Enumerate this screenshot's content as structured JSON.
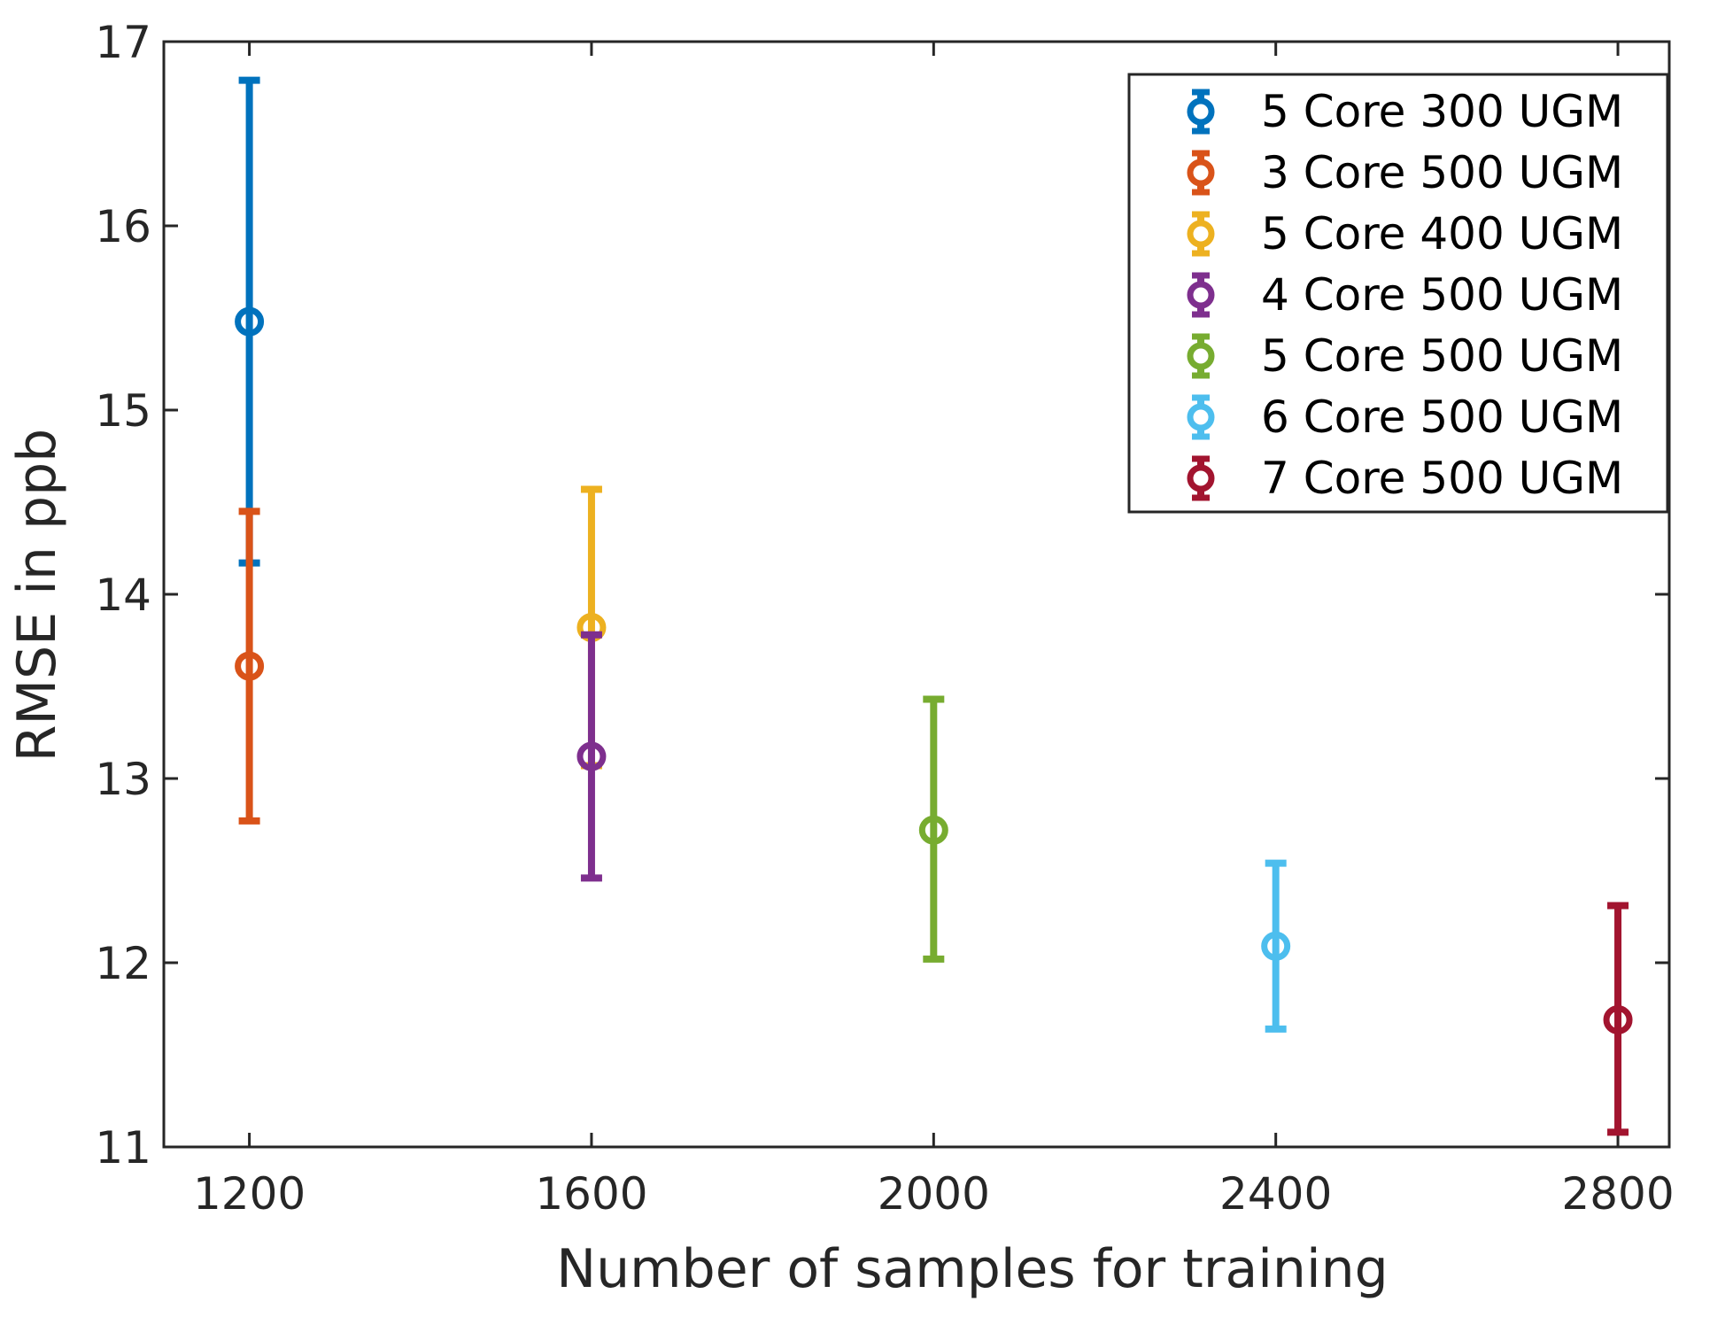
{
  "chart_data": {
    "type": "errorbar",
    "title": "",
    "xlabel": "Number of samples for training",
    "ylabel": "RMSE in ppb",
    "xlim": [
      1100,
      2860
    ],
    "ylim": [
      11,
      17
    ],
    "xticks": [
      1200,
      1600,
      2000,
      2400,
      2800
    ],
    "yticks": [
      11,
      12,
      13,
      14,
      15,
      16,
      17
    ],
    "grid": false,
    "legend_position": "top-right",
    "series": [
      {
        "name": "5 Core 300 UGM",
        "color": "#0072BD",
        "x": 1200,
        "y": 15.48,
        "low": 14.17,
        "high": 16.79
      },
      {
        "name": "3 Core 500 UGM",
        "color": "#D95319",
        "x": 1200,
        "y": 13.61,
        "low": 12.77,
        "high": 14.45
      },
      {
        "name": "5 Core 400 UGM",
        "color": "#EDB120",
        "x": 1600,
        "y": 13.82,
        "low": 13.07,
        "high": 14.57
      },
      {
        "name": "4 Core 500 UGM",
        "color": "#7E2F8E",
        "x": 1600,
        "y": 13.12,
        "low": 12.46,
        "high": 13.78
      },
      {
        "name": "5 Core 500 UGM",
        "color": "#77AC30",
        "x": 2000,
        "y": 12.72,
        "low": 12.02,
        "high": 13.43
      },
      {
        "name": "6 Core 500 UGM",
        "color": "#4DBEEE",
        "x": 2400,
        "y": 12.09,
        "low": 11.64,
        "high": 12.54
      },
      {
        "name": "7 Core 500 UGM",
        "color": "#A2142F",
        "x": 2800,
        "y": 11.69,
        "low": 11.08,
        "high": 12.31
      }
    ]
  }
}
